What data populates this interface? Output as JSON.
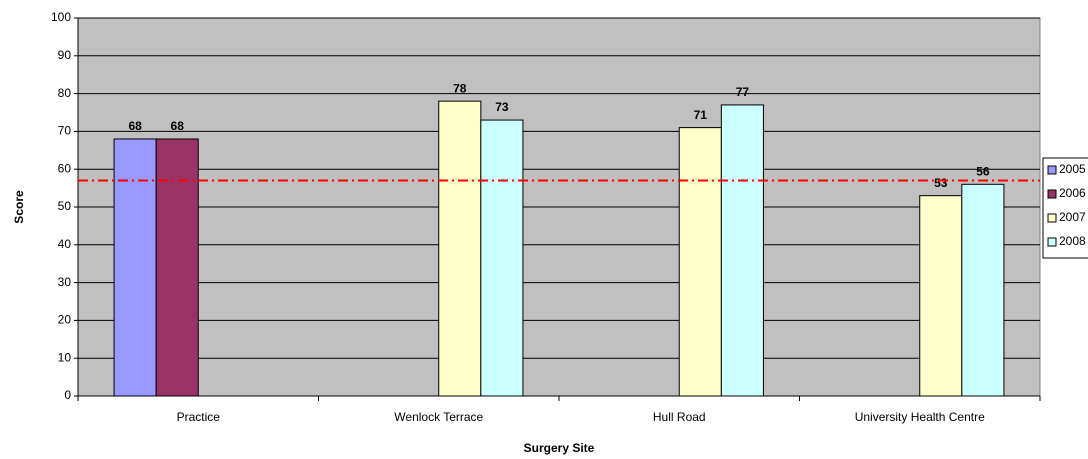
{
  "chart_data": {
    "type": "bar",
    "x_label": "Surgery Site",
    "y_label": "Score",
    "categories": [
      "Practice",
      "Wenlock Terrace",
      "Hull Road",
      "University Health Centre"
    ],
    "series": [
      {
        "name": "2005",
        "color": "#9999ff",
        "values": [
          68,
          null,
          null,
          null
        ]
      },
      {
        "name": "2006",
        "color": "#993366",
        "values": [
          68,
          null,
          null,
          null
        ]
      },
      {
        "name": "2007",
        "color": "#ffffcc",
        "values": [
          null,
          78,
          71,
          53
        ]
      },
      {
        "name": "2008",
        "color": "#ccffff",
        "values": [
          null,
          73,
          77,
          56
        ]
      }
    ],
    "ylim": [
      0,
      100
    ],
    "yticks": [
      0,
      10,
      20,
      30,
      40,
      50,
      60,
      70,
      80,
      90,
      100
    ],
    "grid": true,
    "plot_background": "#c0c0c0",
    "reference_line": 57,
    "reference_line_color": "#ff0000",
    "legend": "right"
  }
}
